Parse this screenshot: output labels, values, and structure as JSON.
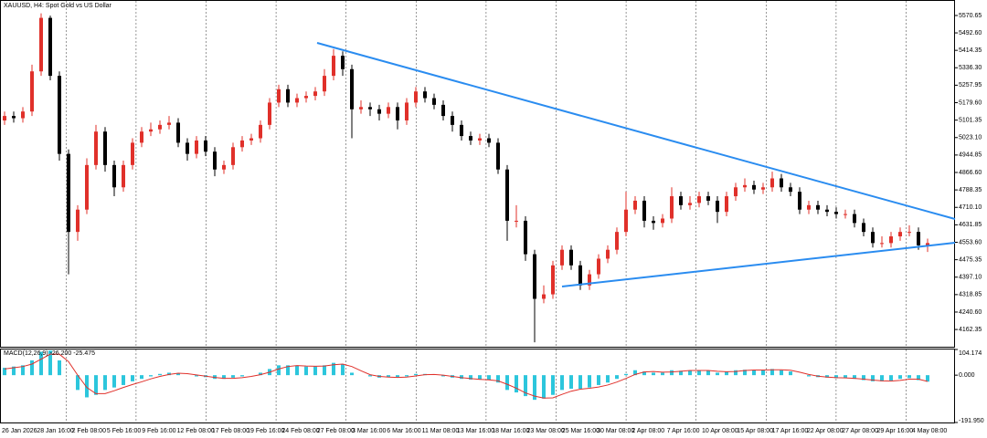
{
  "chart_data": {
    "type": "candlestick",
    "title": "XAUUSD, H4: Spot Gold vs US Dollar",
    "open": [
      5100,
      5120,
      5110,
      5140,
      5320,
      5560,
      5300,
      4950,
      4600,
      4700,
      4900,
      5050,
      4900,
      4800,
      4900,
      5000,
      5050,
      5060,
      5080,
      5090,
      5000,
      4950,
      5010,
      4960,
      4880,
      4900,
      4980,
      5010,
      5020,
      5080,
      5180,
      5240,
      5180,
      5200,
      5210,
      5230,
      5300,
      5390,
      5330,
      5150,
      5160,
      5150,
      5130,
      5160,
      5100,
      5180,
      5230,
      5200,
      5170,
      5120,
      5080,
      5030,
      5010,
      5020,
      5000,
      4880,
      4650,
      4650,
      4500,
      4300,
      4320,
      4450,
      4520,
      4450,
      4360,
      4410,
      4480,
      4520,
      4600,
      4700,
      4740,
      4650,
      4640,
      4660,
      4760,
      4720,
      4730,
      4760,
      4740,
      4690,
      4760,
      4800,
      4810,
      4790,
      4800,
      4840,
      4800,
      4780,
      4700,
      4720,
      4700,
      4690,
      4680,
      4680,
      4640,
      4600,
      4550,
      4550,
      4580,
      4600,
      4600,
      4540
    ],
    "high": [
      5140,
      5140,
      5160,
      5350,
      5580,
      5570,
      5320,
      4970,
      4720,
      4930,
      5080,
      5070,
      4920,
      4920,
      5020,
      5070,
      5090,
      5100,
      5120,
      5110,
      5020,
      5030,
      5030,
      4980,
      4920,
      5000,
      5030,
      5040,
      5100,
      5200,
      5260,
      5260,
      5220,
      5230,
      5250,
      5330,
      5420,
      5410,
      5350,
      5190,
      5180,
      5170,
      5180,
      5180,
      5200,
      5250,
      5250,
      5220,
      5190,
      5140,
      5100,
      5050,
      5040,
      5040,
      5020,
      4900,
      4720,
      4670,
      4520,
      4360,
      4470,
      4540,
      4540,
      4470,
      4430,
      4500,
      4540,
      4620,
      4780,
      4760,
      4760,
      4670,
      4680,
      4800,
      4780,
      4760,
      4780,
      4780,
      4760,
      4780,
      4820,
      4840,
      4830,
      4820,
      4870,
      4860,
      4820,
      4800,
      4740,
      4740,
      4720,
      4710,
      4700,
      4700,
      4660,
      4620,
      4580,
      4600,
      4620,
      4630,
      4620,
      4570
    ],
    "low": [
      5080,
      5090,
      5090,
      5120,
      5300,
      5280,
      4920,
      4410,
      4560,
      4680,
      4880,
      4870,
      4760,
      4780,
      4880,
      4980,
      5030,
      5040,
      5060,
      4980,
      4920,
      4930,
      4940,
      4850,
      4860,
      4880,
      4960,
      4990,
      5000,
      5060,
      5160,
      5160,
      5160,
      5180,
      5190,
      5210,
      5280,
      5300,
      5020,
      5130,
      5120,
      5100,
      5110,
      5060,
      5080,
      5160,
      5180,
      5150,
      5100,
      5050,
      5010,
      4990,
      4990,
      4980,
      4860,
      4560,
      4620,
      4470,
      4105,
      4280,
      4300,
      4430,
      4430,
      4340,
      4340,
      4390,
      4460,
      4500,
      4580,
      4680,
      4620,
      4610,
      4620,
      4640,
      4700,
      4700,
      4710,
      4720,
      4640,
      4670,
      4740,
      4780,
      4770,
      4770,
      4780,
      4780,
      4760,
      4680,
      4680,
      4680,
      4670,
      4660,
      4660,
      4620,
      4580,
      4530,
      4530,
      4530,
      4560,
      4580,
      4520,
      4510
    ],
    "close": [
      5120,
      5110,
      5140,
      5320,
      5560,
      5300,
      4950,
      4600,
      4700,
      4900,
      5050,
      4900,
      4800,
      4900,
      5000,
      5050,
      5060,
      5080,
      5090,
      5000,
      4950,
      5010,
      4960,
      4880,
      4900,
      4980,
      5010,
      5020,
      5080,
      5180,
      5240,
      5180,
      5200,
      5210,
      5230,
      5300,
      5390,
      5330,
      5150,
      5160,
      5150,
      5130,
      5160,
      5100,
      5180,
      5230,
      5200,
      5170,
      5120,
      5080,
      5030,
      5010,
      5020,
      5000,
      4880,
      4650,
      4650,
      4500,
      4300,
      4320,
      4450,
      4520,
      4450,
      4360,
      4410,
      4480,
      4520,
      4600,
      4700,
      4740,
      4650,
      4640,
      4660,
      4760,
      4720,
      4730,
      4760,
      4740,
      4690,
      4760,
      4800,
      4810,
      4790,
      4800,
      4840,
      4800,
      4780,
      4700,
      4720,
      4700,
      4690,
      4680,
      4680,
      4640,
      4600,
      4550,
      4550,
      4580,
      4600,
      4600,
      4540,
      4550
    ],
    "bull_color": "#e0302a",
    "bear_color": "#000000",
    "ylim": [
      4085,
      5636
    ],
    "yticks": [
      5570.65,
      {
        "value": 5492.6,
        "label": "5492.60"
      },
      5414.35,
      {
        "value": 5336.3,
        "label": "5336.30"
      },
      5257.95,
      {
        "value": 5179.6,
        "label": "5179.60"
      },
      5101.35,
      {
        "value": 5023.1,
        "label": "5023.10"
      },
      4944.85,
      {
        "value": 4866.6,
        "label": "4866.60"
      },
      4788.35,
      {
        "value": 4710.1,
        "label": "4710.10"
      },
      4631.85,
      {
        "value": 4553.6,
        "label": "4553.60"
      },
      4475.35,
      {
        "value": 4397.1,
        "label": "4397.10"
      },
      4318.85,
      {
        "value": 4240.6,
        "label": "4240.60"
      },
      4162.35
    ],
    "grid": true,
    "x_labels": [
      "26 Jan 2026",
      "28 Jan 16:00",
      "2 Feb 08:00",
      "5 Feb 16:00",
      "9 Feb 16:00",
      "12 Feb 08:00",
      "17 Feb 08:00",
      "19 Feb 16:00",
      "24 Feb 08:00",
      "27 Feb 08:00",
      "3 Mar 16:00",
      "6 Mar 16:00",
      "11 Mar 08:00",
      "13 Mar 16:00",
      "18 Mar 16:00",
      "23 Mar 08:00",
      "25 Mar 16:00",
      "30 Mar 08:00",
      "2 Apr 08:00",
      "7 Apr 16:00",
      "10 Apr 08:00",
      "15 Apr 08:00",
      "17 Apr 16:00",
      "22 Apr 08:00",
      "27 Apr 08:00",
      "29 Apr 16:00",
      "4 May 08:00"
    ],
    "indicator": {
      "title": "MACD(12,26,9) -26.200 -25.475",
      "ylim": [
        -191.95,
        104.174
      ],
      "yticks": [
        104.174,
        {
          "value": 0,
          "label": "0.000"
        },
        {
          "value": -191.95,
          "label": "-191.950"
        }
      ],
      "histogram_color": "#2cc6dc",
      "signal_color": "#e0302a",
      "histogram": [
        30,
        35,
        40,
        60,
        95,
        100,
        60,
        0,
        -60,
        -90,
        -80,
        -60,
        -50,
        -40,
        -25,
        -15,
        -5,
        5,
        10,
        8,
        0,
        -5,
        -8,
        -15,
        -15,
        -10,
        -5,
        0,
        10,
        25,
        40,
        40,
        38,
        35,
        35,
        40,
        50,
        45,
        10,
        0,
        -5,
        -10,
        -8,
        -10,
        -5,
        5,
        5,
        0,
        -5,
        -10,
        -15,
        -18,
        -18,
        -20,
        -30,
        -60,
        -70,
        -85,
        -100,
        -95,
        -80,
        -60,
        -55,
        -55,
        -50,
        -40,
        -30,
        -15,
        5,
        20,
        15,
        10,
        10,
        20,
        18,
        18,
        20,
        18,
        10,
        15,
        20,
        22,
        20,
        20,
        25,
        20,
        15,
        0,
        -5,
        -8,
        -10,
        -12,
        -12,
        -15,
        -20,
        -25,
        -25,
        -22,
        -15,
        -12,
        -20,
        -26.2
      ],
      "signal": [
        25,
        30,
        35,
        45,
        65,
        85,
        85,
        55,
        0,
        -50,
        -75,
        -75,
        -63,
        -50,
        -38,
        -27,
        -15,
        -5,
        3,
        8,
        6,
        1,
        -4,
        -9,
        -13,
        -13,
        -10,
        -5,
        2,
        12,
        25,
        35,
        39,
        37,
        36,
        37,
        42,
        45,
        35,
        18,
        2,
        -5,
        -8,
        -9,
        -8,
        -3,
        2,
        3,
        0,
        -5,
        -10,
        -14,
        -17,
        -19,
        -23,
        -37,
        -53,
        -72,
        -85,
        -93,
        -92,
        -78,
        -65,
        -57,
        -53,
        -48,
        -40,
        -28,
        -13,
        3,
        13,
        15,
        12,
        13,
        16,
        19,
        19,
        19,
        16,
        14,
        15,
        19,
        21,
        21,
        22,
        22,
        20,
        12,
        3,
        -4,
        -8,
        -10,
        -11,
        -13,
        -16,
        -20,
        -23,
        -24,
        -21,
        -16,
        -16,
        -25.475
      ]
    }
  }
}
